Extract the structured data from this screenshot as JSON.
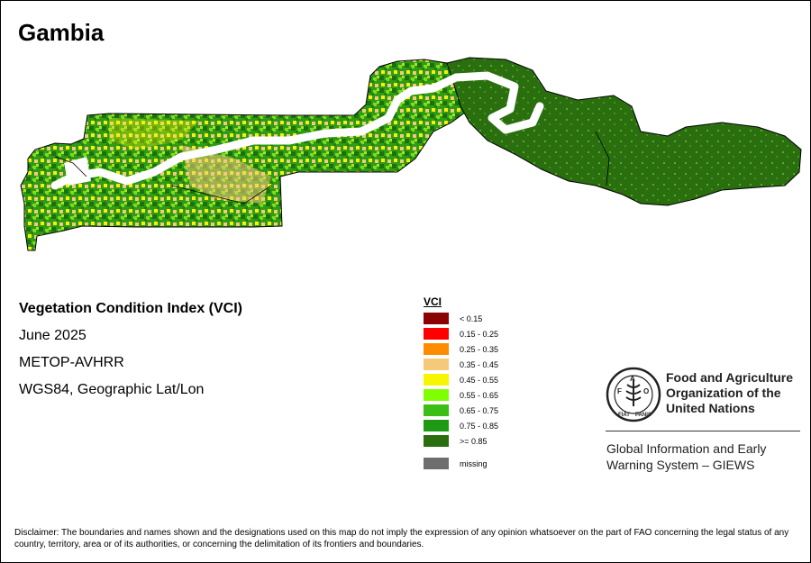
{
  "title": "Gambia",
  "info": {
    "index_name": "Vegetation Condition Index (VCI)",
    "period": "June 2025",
    "sensor": "METOP-AVHRR",
    "projection": "WGS84, Geographic Lat/Lon"
  },
  "legend": {
    "title": "VCI",
    "items": [
      {
        "label": "< 0.15",
        "color": "#8b0000"
      },
      {
        "label": "0.15 - 0.25",
        "color": "#ff0000"
      },
      {
        "label": "0.25 - 0.35",
        "color": "#ff8c00"
      },
      {
        "label": "0.35 - 0.45",
        "color": "#f5c97a"
      },
      {
        "label": "0.45 - 0.55",
        "color": "#f6f600"
      },
      {
        "label": "0.55 - 0.65",
        "color": "#7fff00"
      },
      {
        "label": "0.65 - 0.75",
        "color": "#3cbe14"
      },
      {
        "label": "0.75 - 0.85",
        "color": "#1e9a12"
      },
      {
        "label": ">= 0.85",
        "color": "#2a6e10"
      }
    ],
    "missing_label": "missing",
    "missing_color": "#6e6e6e"
  },
  "fao": {
    "logo_letters": [
      "F",
      "A",
      "O"
    ],
    "logo_motto": [
      "FIAT",
      "PANIS"
    ],
    "name_line1": "Food and Agriculture",
    "name_line2": "Organization of the",
    "name_line3": "United Nations",
    "giews_line1": "Global Information and Early",
    "giews_line2": "Warning System – GIEWS"
  },
  "disclaimer": "Disclaimer: The boundaries and names shown and the designations used on this map do not imply the expression of any opinion whatsoever on the part of FAO concerning the legal status of any country, territory, area or of its authorities, or concerning the delimitation of its frontiers and boundaries."
}
